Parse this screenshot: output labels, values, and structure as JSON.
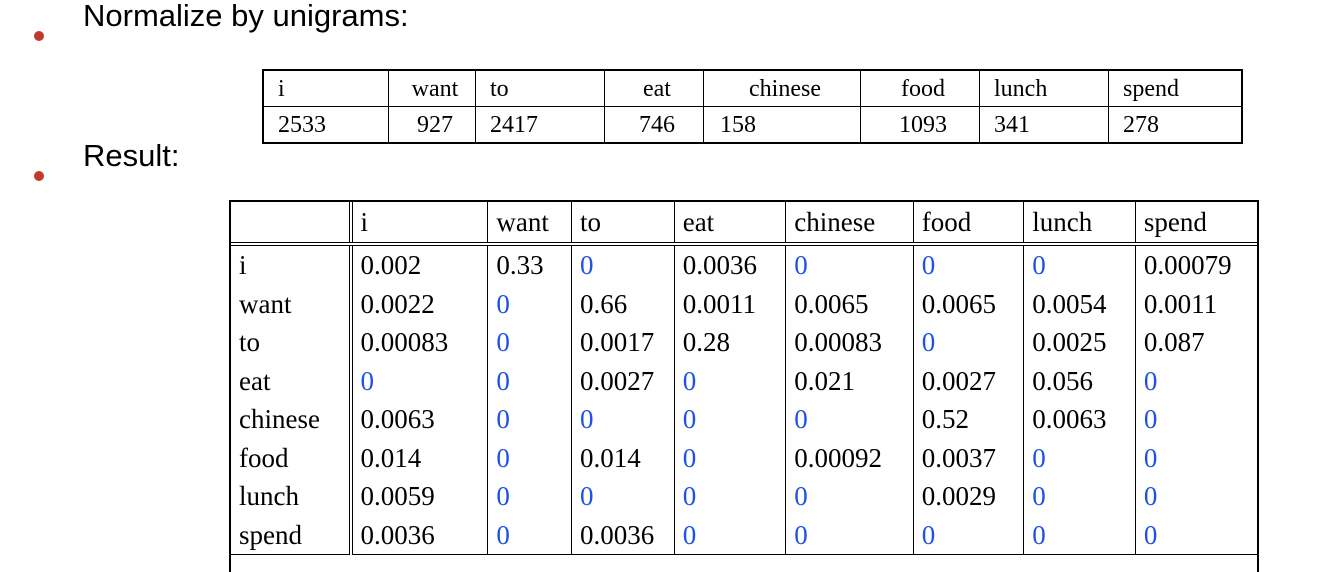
{
  "bullets": {
    "normalize": "Normalize by unigrams:",
    "result": "Result:"
  },
  "colors": {
    "bullet": "#c0392b",
    "zero_value": "#1e52e6",
    "text": "#000000"
  },
  "unigrams": {
    "words": [
      "i",
      "want",
      "to",
      "eat",
      "chinese",
      "food",
      "lunch",
      "spend"
    ],
    "counts": [
      "2533",
      "927",
      "2417",
      "746",
      "158",
      "1093",
      "341",
      "278"
    ]
  },
  "result": {
    "header": [
      "",
      "i",
      "want",
      "to",
      "eat",
      "chinese",
      "food",
      "lunch",
      "spend"
    ],
    "rows": [
      {
        "label": "i",
        "values": [
          "0.002",
          "0.33",
          "0",
          "0.0036",
          "0",
          "0",
          "0",
          "0.00079"
        ]
      },
      {
        "label": "want",
        "values": [
          "0.0022",
          "0",
          "0.66",
          "0.0011",
          "0.0065",
          "0.0065",
          "0.0054",
          "0.0011"
        ]
      },
      {
        "label": "to",
        "values": [
          "0.00083",
          "0",
          "0.0017",
          "0.28",
          "0.00083",
          "0",
          "0.0025",
          "0.087"
        ]
      },
      {
        "label": "eat",
        "values": [
          "0",
          "0",
          "0.0027",
          "0",
          "0.021",
          "0.0027",
          "0.056",
          "0"
        ]
      },
      {
        "label": "chinese",
        "values": [
          "0.0063",
          "0",
          "0",
          "0",
          "0",
          "0.52",
          "0.0063",
          "0"
        ]
      },
      {
        "label": "food",
        "values": [
          "0.014",
          "0",
          "0.014",
          "0",
          "0.00092",
          "0.0037",
          "0",
          "0"
        ]
      },
      {
        "label": "lunch",
        "values": [
          "0.0059",
          "0",
          "0",
          "0",
          "0",
          "0.0029",
          "0",
          "0"
        ]
      },
      {
        "label": "spend",
        "values": [
          "0.0036",
          "0",
          "0.0036",
          "0",
          "0",
          "0",
          "0",
          "0"
        ]
      }
    ]
  }
}
